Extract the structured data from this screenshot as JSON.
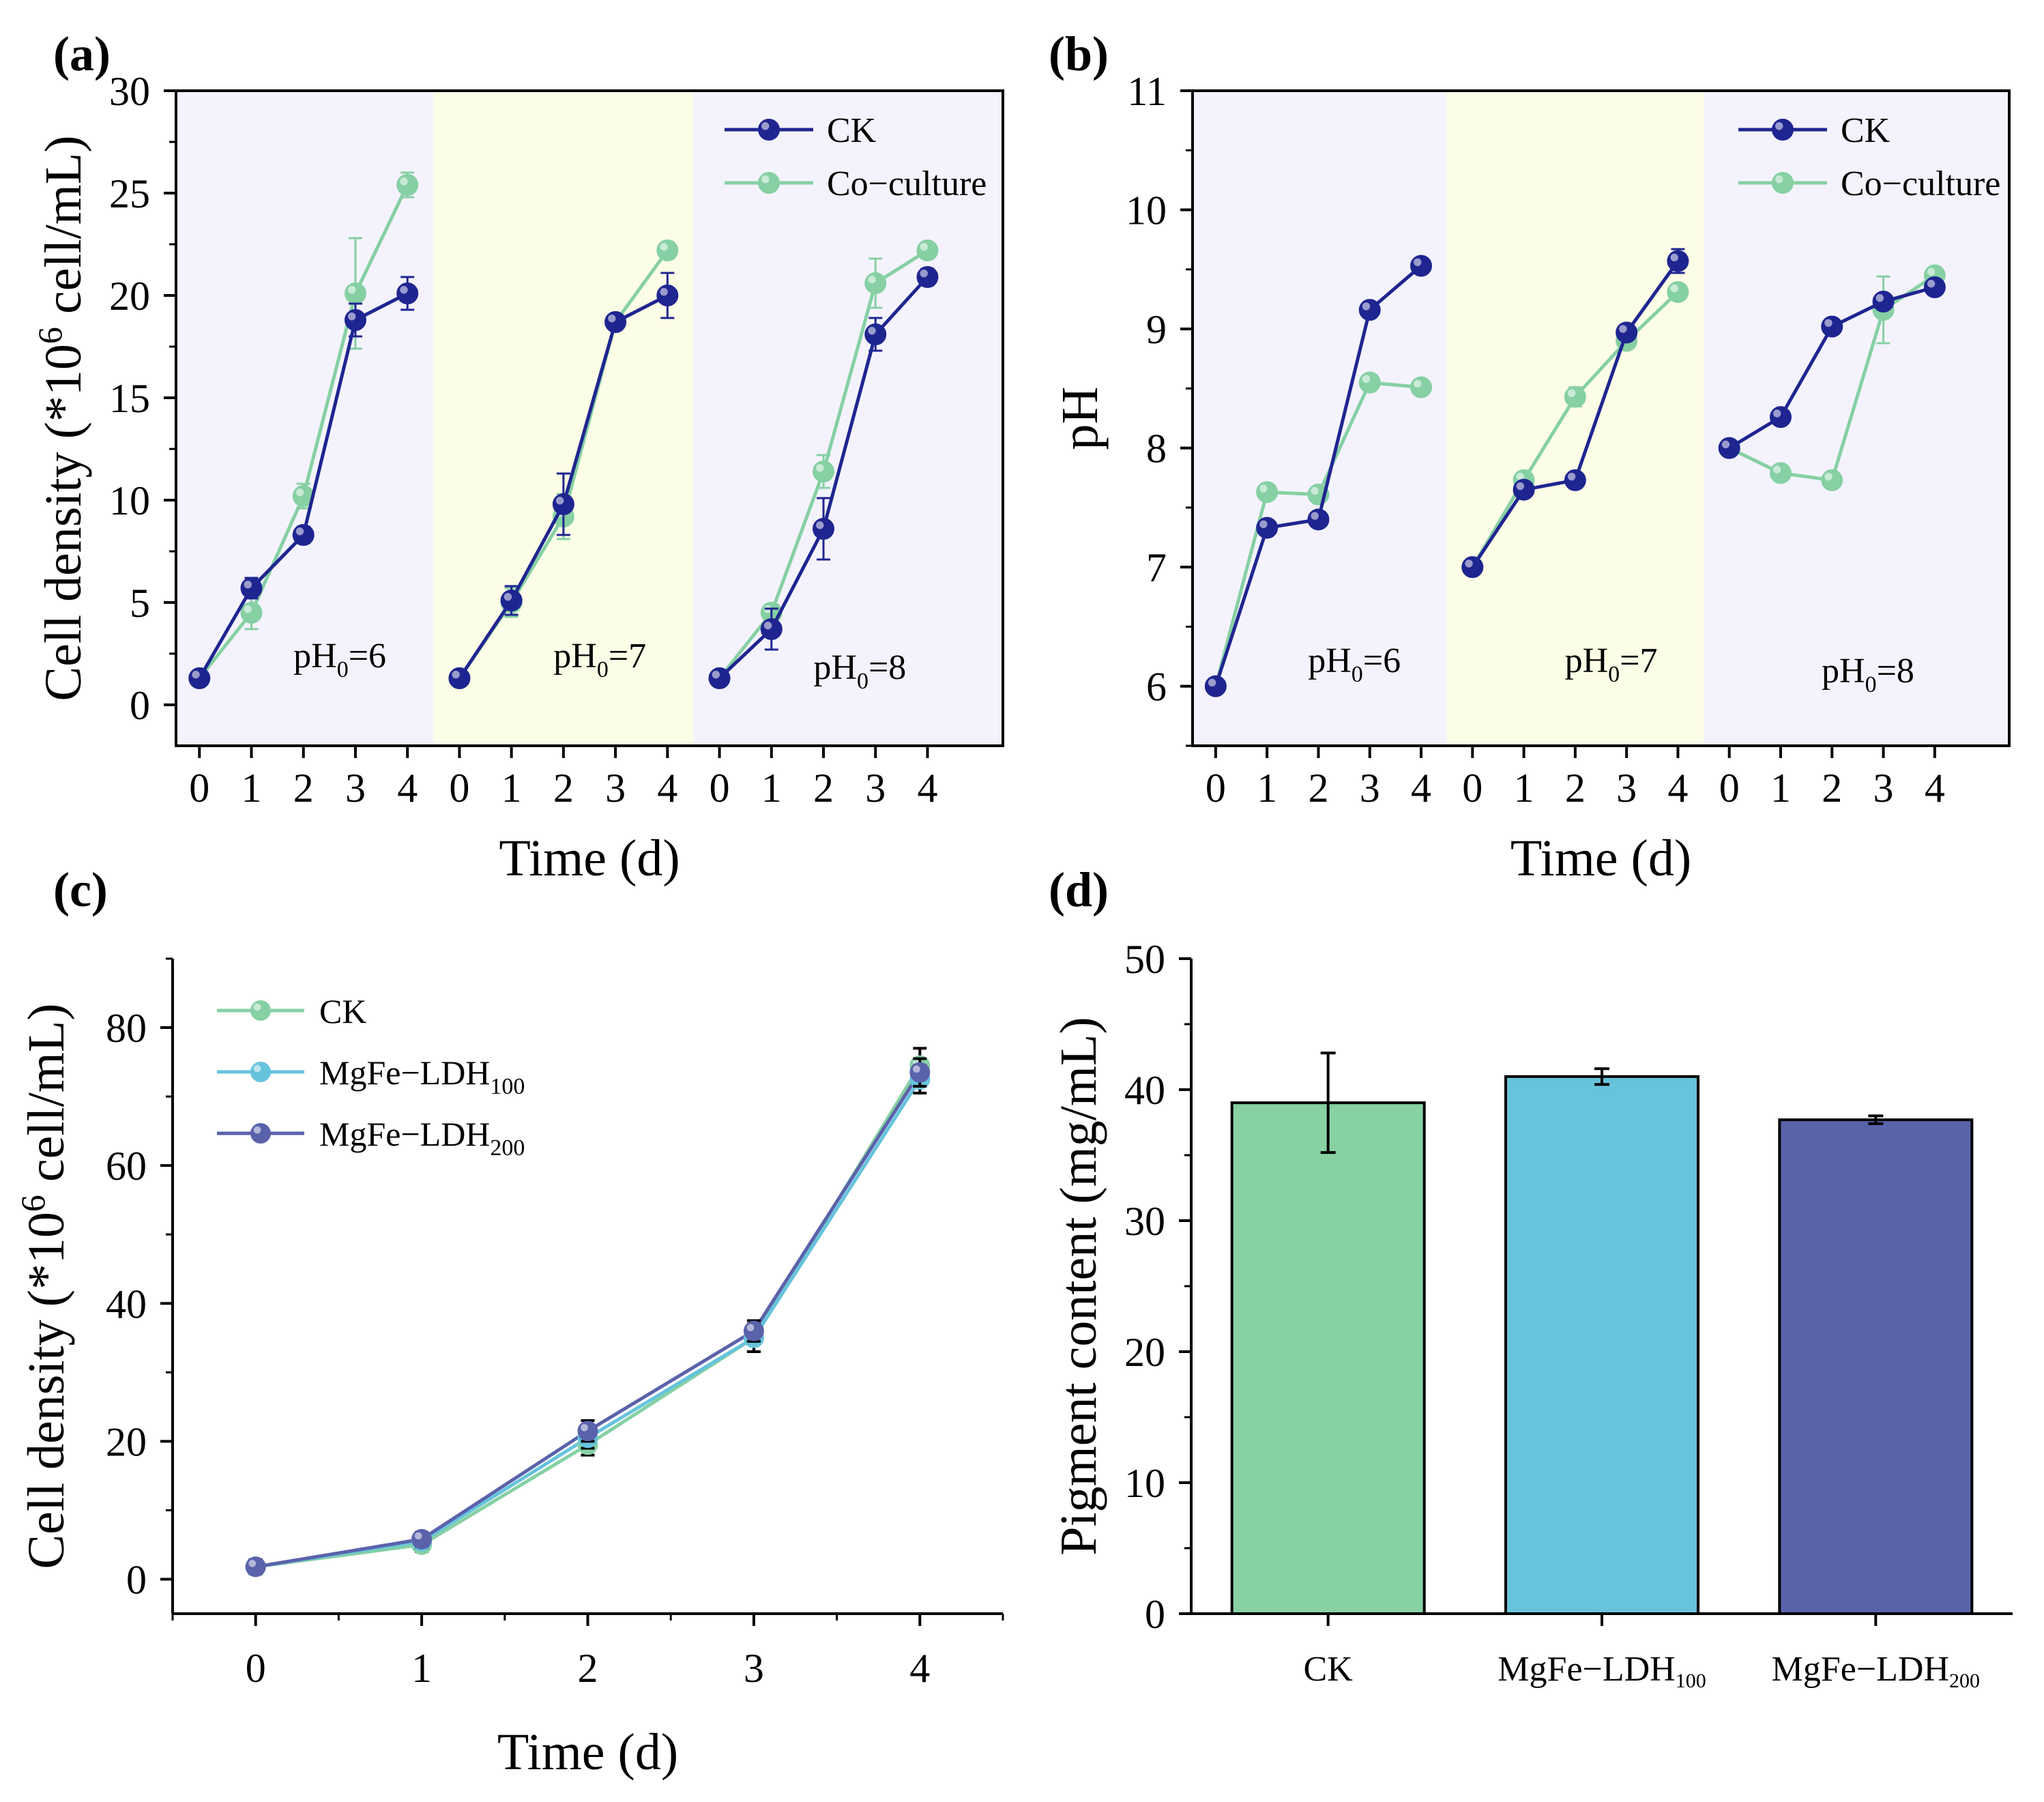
{
  "colors": {
    "ck_dark": "#1f2590",
    "coculture_green": "#86d0a4",
    "ldh100_blue": "#66c3dc",
    "ldh200_purple": "#5a62ab",
    "band_lavender": "#f4f3fd",
    "band_yellow": "#fcfde6",
    "bar_ck": "#88d1a3",
    "bar_ldh100": "#68c3dc",
    "bar_ldh200": "#5963aa"
  },
  "chart_data": [
    {
      "panel": "(a)",
      "type": "line",
      "xlabel": "Time (d)",
      "ylabel_prefix": "Cell density (*10",
      "ylabel_sup": "6",
      "ylabel_suffix": " cell/mL)",
      "ylim": [
        -2,
        30
      ],
      "yticks": [
        0,
        5,
        10,
        15,
        20,
        25,
        30
      ],
      "x_tick_labels": [
        "0",
        "1",
        "2",
        "3",
        "4",
        "0",
        "1",
        "2",
        "3",
        "4",
        "0",
        "1",
        "2",
        "3",
        "4"
      ],
      "groups": [
        {
          "label_main": "pH",
          "label_sub": "0",
          "label_tail": "=6",
          "band": "lavender"
        },
        {
          "label_main": "pH",
          "label_sub": "0",
          "label_tail": "=7",
          "band": "yellow"
        },
        {
          "label_main": "pH",
          "label_sub": "0",
          "label_tail": "=8",
          "band": "lavender"
        }
      ],
      "legend": [
        "CK",
        "Co−culture"
      ],
      "series": [
        {
          "name": "CK",
          "groups": [
            {
              "values": [
                1.3,
                5.7,
                8.3,
                18.8,
                20.1
              ],
              "errors": [
                0.2,
                0.5,
                0.4,
                0.8,
                0.8
              ]
            },
            {
              "values": [
                1.3,
                5.1,
                9.8,
                18.7,
                20.0
              ],
              "errors": [
                0.2,
                0.7,
                1.5,
                0.3,
                1.1
              ]
            },
            {
              "values": [
                1.3,
                3.7,
                8.6,
                18.1,
                20.9
              ],
              "errors": [
                0.2,
                1.0,
                1.5,
                0.8,
                0.4
              ]
            }
          ]
        },
        {
          "name": "Co−culture",
          "groups": [
            {
              "values": [
                1.3,
                4.5,
                10.2,
                20.1,
                25.4
              ],
              "errors": [
                0.2,
                0.8,
                0.6,
                2.7,
                0.6
              ]
            },
            {
              "values": [
                1.3,
                5.0,
                9.2,
                18.7,
                22.2
              ],
              "errors": [
                0.2,
                0.7,
                1.1,
                0.3,
                0.4
              ]
            },
            {
              "values": [
                1.3,
                4.5,
                11.4,
                20.6,
                22.2
              ],
              "errors": [
                0.2,
                0.4,
                0.8,
                1.2,
                0.3
              ]
            }
          ]
        }
      ]
    },
    {
      "panel": "(b)",
      "type": "line",
      "xlabel": "Time (d)",
      "ylabel": "pH",
      "ylim": [
        5.5,
        11
      ],
      "yticks": [
        6,
        7,
        8,
        9,
        10,
        11
      ],
      "x_tick_labels": [
        "0",
        "1",
        "2",
        "3",
        "4",
        "0",
        "1",
        "2",
        "3",
        "4",
        "0",
        "1",
        "2",
        "3",
        "4"
      ],
      "groups": [
        {
          "label_main": "pH",
          "label_sub": "0",
          "label_tail": "=6",
          "band": "lavender"
        },
        {
          "label_main": "pH",
          "label_sub": "0",
          "label_tail": "=7",
          "band": "yellow"
        },
        {
          "label_main": "pH",
          "label_sub": "0",
          "label_tail": "=8",
          "band": "lavender"
        }
      ],
      "legend": [
        "CK",
        "Co−culture"
      ],
      "series": [
        {
          "name": "CK",
          "groups": [
            {
              "values": [
                6.0,
                7.33,
                7.4,
                9.16,
                9.53
              ],
              "errors": [
                0.02,
                0.03,
                0.03,
                0.04,
                0.04
              ]
            },
            {
              "values": [
                7.0,
                7.65,
                7.73,
                8.97,
                9.57
              ],
              "errors": [
                0.02,
                0.04,
                0.03,
                0.04,
                0.1
              ]
            },
            {
              "values": [
                8.0,
                8.26,
                9.02,
                9.23,
                9.35
              ],
              "errors": [
                0.02,
                0.03,
                0.04,
                0.05,
                0.05
              ]
            }
          ]
        },
        {
          "name": "Co−culture",
          "groups": [
            {
              "values": [
                6.0,
                7.63,
                7.61,
                8.55,
                8.51
              ],
              "errors": [
                0.02,
                0.04,
                0.03,
                0.05,
                0.04
              ]
            },
            {
              "values": [
                7.0,
                7.73,
                8.43,
                8.9,
                9.31
              ],
              "errors": [
                0.02,
                0.05,
                0.08,
                0.04,
                0.04
              ]
            },
            {
              "values": [
                8.0,
                7.79,
                7.73,
                9.16,
                9.45
              ],
              "errors": [
                0.02,
                0.03,
                0.03,
                0.28,
                0.05
              ]
            }
          ]
        }
      ]
    },
    {
      "panel": "(c)",
      "type": "line",
      "xlabel": "Time (d)",
      "ylabel_prefix": "Cell density (*10",
      "ylabel_sup": "6",
      "ylabel_suffix": " cell/mL)",
      "xlim": [
        -0.5,
        4.5
      ],
      "ylim": [
        -5,
        90
      ],
      "yticks": [
        0,
        20,
        40,
        60,
        80
      ],
      "x": [
        0,
        1,
        2,
        3,
        4
      ],
      "legend": [
        {
          "main": "CK",
          "sub": ""
        },
        {
          "main": "MgFe−LDH",
          "sub": "100"
        },
        {
          "main": "MgFe−LDH",
          "sub": "200"
        }
      ],
      "series": [
        {
          "name": "CK",
          "values": [
            1.8,
            5.0,
            19.5,
            35.0,
            74.5
          ],
          "errors": [
            1.0,
            1.0,
            1.5,
            2.0,
            2.5
          ]
        },
        {
          "name": "MgFe−LDH100",
          "values": [
            1.8,
            5.5,
            20.5,
            35.0,
            72.5
          ],
          "errors": [
            1.0,
            1.0,
            1.5,
            2.0,
            2.0
          ]
        },
        {
          "name": "MgFe−LDH200",
          "values": [
            1.8,
            5.8,
            21.5,
            36.0,
            73.5
          ],
          "errors": [
            1.0,
            1.0,
            1.5,
            1.5,
            2.0
          ]
        }
      ]
    },
    {
      "panel": "(d)",
      "type": "bar",
      "ylabel": "Pigment content (mg/mL)",
      "ylim": [
        0,
        50
      ],
      "yticks": [
        0,
        10,
        20,
        30,
        40,
        50
      ],
      "categories": [
        {
          "main": "CK",
          "sub": ""
        },
        {
          "main": "MgFe−LDH",
          "sub": "100"
        },
        {
          "main": "MgFe−LDH",
          "sub": "200"
        }
      ],
      "values": [
        39.0,
        41.0,
        37.7
      ],
      "errors": [
        3.8,
        0.6,
        0.3
      ]
    }
  ]
}
